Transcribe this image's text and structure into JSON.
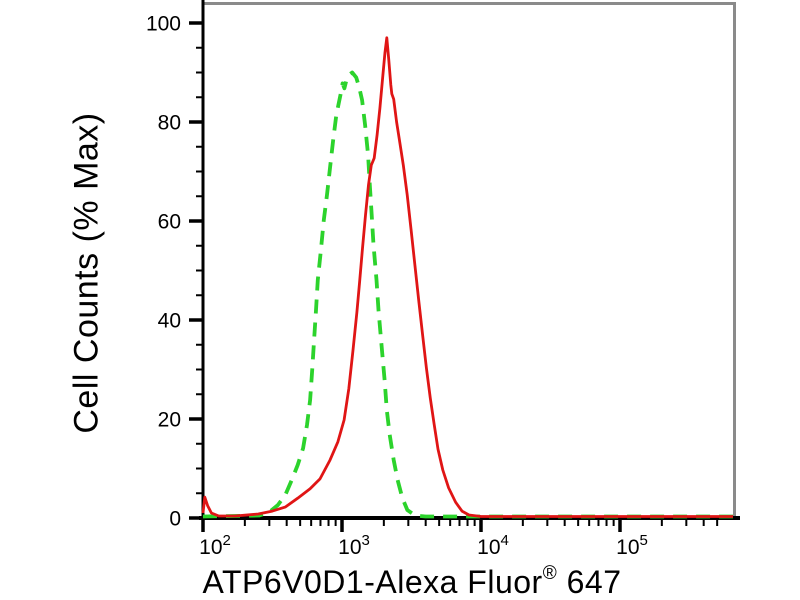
{
  "figure": {
    "ylabel": "Cell Counts (% Max)",
    "xlabel_main": "ATP6V0D1-Alexa Fluor",
    "xlabel_reg": "®",
    "xlabel_suffix": " 647"
  },
  "colors": {
    "background": "#ffffff",
    "text": "#000000",
    "axis": "#000000",
    "frame_gray": "#8a8a8a",
    "red_series": "#e01515",
    "green_series": "#2cd32c"
  },
  "chart_data": {
    "type": "line",
    "title": "",
    "xlabel": "ATP6V0D1-Alexa Fluor® 647",
    "ylabel": "Cell Counts (% Max)",
    "x_scale": "log",
    "x_range": [
      100,
      650000
    ],
    "ylim": [
      0,
      100
    ],
    "grid": "off",
    "legend": "none",
    "x_tick_exponents": [
      2,
      3,
      4,
      5
    ],
    "y_major_ticks": [
      0,
      20,
      40,
      60,
      80,
      100
    ],
    "y_minor_step": 5,
    "series": [
      {
        "name": "green-dashed",
        "color": "#2cd32c",
        "style": "dashed",
        "points": [
          [
            100,
            0.3
          ],
          [
            255,
            0.5
          ],
          [
            300,
            1.2
          ],
          [
            345,
            2.6
          ],
          [
            390,
            4.6
          ],
          [
            435,
            7.7
          ],
          [
            480,
            10.7
          ],
          [
            525,
            14.1
          ],
          [
            560,
            18.8
          ],
          [
            590,
            23.8
          ],
          [
            610,
            29.9
          ],
          [
            630,
            36.0
          ],
          [
            650,
            42.0
          ],
          [
            670,
            48.1
          ],
          [
            705,
            54.1
          ],
          [
            740,
            60.2
          ],
          [
            780,
            65.3
          ],
          [
            820,
            70.7
          ],
          [
            865,
            76.4
          ],
          [
            910,
            81.4
          ],
          [
            975,
            85.5
          ],
          [
            1010,
            87.8
          ],
          [
            1040,
            86.8
          ],
          [
            1080,
            88.6
          ],
          [
            1130,
            89.6
          ],
          [
            1185,
            90.0
          ],
          [
            1265,
            89.0
          ],
          [
            1330,
            87.0
          ],
          [
            1395,
            84.4
          ],
          [
            1465,
            79.4
          ],
          [
            1540,
            73.3
          ],
          [
            1585,
            67.3
          ],
          [
            1635,
            61.2
          ],
          [
            1685,
            55.2
          ],
          [
            1770,
            48.1
          ],
          [
            1830,
            42.0
          ],
          [
            1925,
            35.0
          ],
          [
            2025,
            27.9
          ],
          [
            2100,
            21.8
          ],
          [
            2205,
            16.8
          ],
          [
            2355,
            11.7
          ],
          [
            2510,
            7.7
          ],
          [
            2720,
            4.0
          ],
          [
            2955,
            1.6
          ],
          [
            3365,
            0.5
          ],
          [
            4000,
            0.3
          ],
          [
            650000,
            0.3
          ]
        ]
      },
      {
        "name": "red-solid",
        "color": "#e01515",
        "style": "solid",
        "points": [
          [
            100,
            1.0
          ],
          [
            103,
            4.2
          ],
          [
            108,
            2.5
          ],
          [
            115,
            1.0
          ],
          [
            130,
            0.4
          ],
          [
            170,
            0.4
          ],
          [
            250,
            0.8
          ],
          [
            315,
            1.4
          ],
          [
            390,
            2.2
          ],
          [
            480,
            4.0
          ],
          [
            590,
            5.9
          ],
          [
            695,
            7.9
          ],
          [
            820,
            11.7
          ],
          [
            935,
            15.4
          ],
          [
            1035,
            19.8
          ],
          [
            1120,
            26.1
          ],
          [
            1200,
            33.9
          ],
          [
            1280,
            41.6
          ],
          [
            1340,
            47.9
          ],
          [
            1405,
            54.5
          ],
          [
            1475,
            61.2
          ],
          [
            1550,
            67.3
          ],
          [
            1625,
            71.3
          ],
          [
            1705,
            72.7
          ],
          [
            1790,
            77.4
          ],
          [
            1875,
            82.8
          ],
          [
            1970,
            89.5
          ],
          [
            2035,
            93.9
          ],
          [
            2100,
            97.0
          ],
          [
            2170,
            92.5
          ],
          [
            2245,
            87.5
          ],
          [
            2280,
            85.7
          ],
          [
            2355,
            84.6
          ],
          [
            2470,
            80.0
          ],
          [
            2590,
            76.4
          ],
          [
            2760,
            71.3
          ],
          [
            2945,
            65.3
          ],
          [
            3140,
            58.2
          ],
          [
            3345,
            51.1
          ],
          [
            3565,
            44.0
          ],
          [
            3800,
            37.0
          ],
          [
            4050,
            30.3
          ],
          [
            4320,
            24.2
          ],
          [
            4600,
            19.0
          ],
          [
            4905,
            13.9
          ],
          [
            5310,
            9.7
          ],
          [
            5850,
            6.1
          ],
          [
            6570,
            3.2
          ],
          [
            7300,
            1.4
          ],
          [
            8200,
            0.6
          ],
          [
            10000,
            0.3
          ],
          [
            650000,
            0.3
          ]
        ]
      }
    ]
  }
}
